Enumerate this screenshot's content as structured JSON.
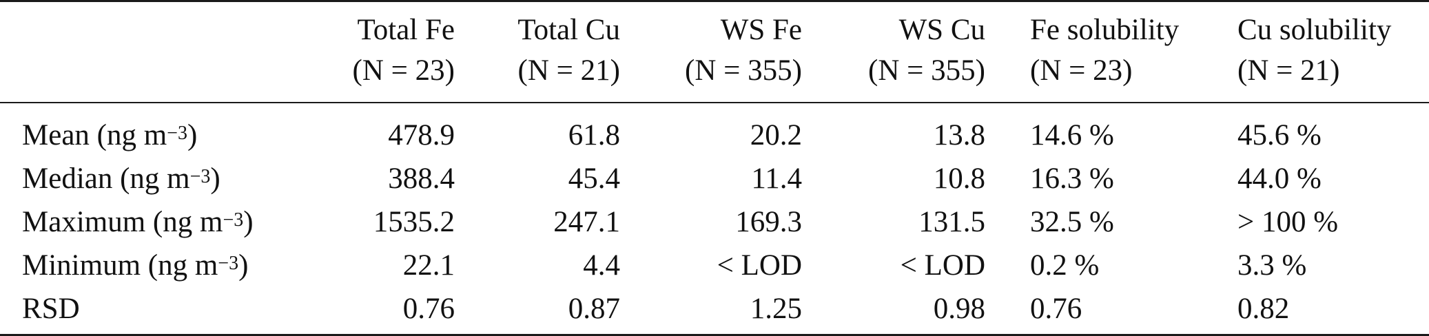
{
  "table": {
    "columns": [
      {
        "name": "Total Fe",
        "n": "(N = 23)"
      },
      {
        "name": "Total Cu",
        "n": "(N = 21)"
      },
      {
        "name": "WS Fe",
        "n": "(N = 355)"
      },
      {
        "name": "WS Cu",
        "n": "(N = 355)"
      },
      {
        "name": "Fe solubility",
        "n": "(N = 23)"
      },
      {
        "name": "Cu solubility",
        "n": "(N = 21)"
      }
    ],
    "rows": [
      {
        "label": "Mean (ng m",
        "unit_exp": "−3",
        "label_end": ")",
        "values": [
          "478.9",
          "61.8",
          "20.2",
          "13.8",
          "14.6 %",
          "45.6 %"
        ]
      },
      {
        "label": "Median (ng m",
        "unit_exp": "−3",
        "label_end": ")",
        "values": [
          "388.4",
          "45.4",
          "11.4",
          "10.8",
          "16.3 %",
          "44.0 %"
        ]
      },
      {
        "label": "Maximum (ng m",
        "unit_exp": "−3",
        "label_end": ")",
        "values": [
          "1535.2",
          "247.1",
          "169.3",
          "131.5",
          "32.5 %",
          "> 100 %"
        ]
      },
      {
        "label": "Minimum (ng m",
        "unit_exp": "−3",
        "label_end": ")",
        "values": [
          "22.1",
          "4.4",
          "< LOD",
          "< LOD",
          "0.2 %",
          "3.3 %"
        ]
      },
      {
        "label": "RSD",
        "unit_exp": "",
        "label_end": "",
        "values": [
          "0.76",
          "0.87",
          "1.25",
          "0.98",
          "0.76",
          "0.82"
        ]
      }
    ]
  }
}
